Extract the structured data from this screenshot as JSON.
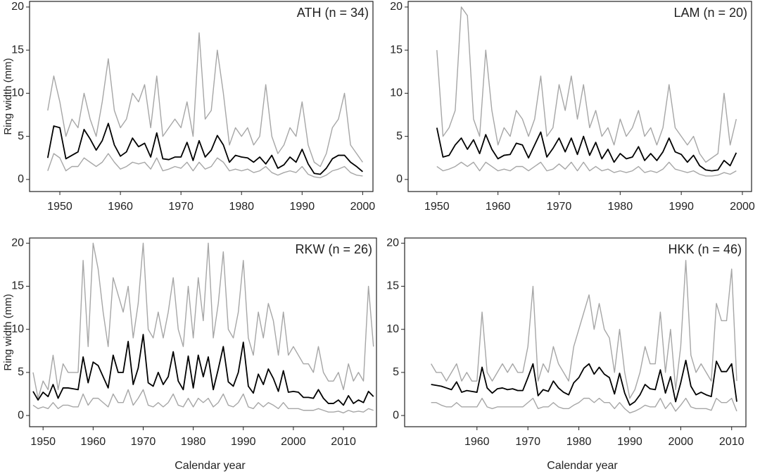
{
  "chart_data": [
    {
      "type": "line",
      "title": "ATH (n = 34)",
      "y_label": "Ring width (mm)",
      "x": [
        1948,
        1949,
        1950,
        1951,
        1952,
        1953,
        1954,
        1955,
        1956,
        1957,
        1958,
        1959,
        1960,
        1961,
        1962,
        1963,
        1964,
        1965,
        1966,
        1967,
        1968,
        1969,
        1970,
        1971,
        1972,
        1973,
        1974,
        1975,
        1976,
        1977,
        1978,
        1979,
        1980,
        1981,
        1982,
        1983,
        1984,
        1985,
        1986,
        1987,
        1988,
        1989,
        1990,
        1991,
        1992,
        1993,
        1994,
        1995,
        1996,
        1997,
        1998,
        1999,
        2000
      ],
      "series": [
        {
          "color": "#a6a6a6",
          "values": [
            8,
            12,
            9,
            5,
            7,
            6,
            10,
            7,
            5,
            9,
            14,
            8,
            6,
            7,
            10,
            9,
            11,
            6,
            12,
            5,
            6,
            7,
            6,
            9,
            5,
            17,
            7,
            8,
            15,
            10,
            4,
            6,
            5,
            6,
            4,
            5,
            11,
            5,
            3,
            4,
            6,
            5,
            9,
            4,
            2,
            1.5,
            3,
            6,
            7,
            10,
            4,
            3,
            2
          ]
        },
        {
          "color": "#a6a6a6",
          "values": [
            1,
            3,
            2.5,
            1,
            1.5,
            1.5,
            2.5,
            2,
            1.5,
            2,
            3,
            2,
            1.2,
            1.5,
            2,
            1.8,
            2,
            1.2,
            2.5,
            1,
            1.2,
            1.5,
            1.3,
            2,
            1,
            2,
            1.2,
            1.5,
            2.5,
            2,
            1,
            1.2,
            1,
            1.2,
            0.8,
            1,
            1.5,
            0.8,
            0.5,
            0.8,
            1,
            0.8,
            1.5,
            0.6,
            0.3,
            0.2,
            0.5,
            1,
            1.2,
            1.5,
            0.8,
            0.5,
            0.4
          ]
        },
        {
          "color": "#000000",
          "values": [
            2.5,
            6.2,
            6.0,
            2.4,
            2.8,
            3.2,
            5.8,
            4.7,
            3.4,
            4.5,
            6.5,
            4.0,
            2.7,
            3.2,
            4.8,
            3.8,
            4.2,
            2.6,
            5.4,
            2.4,
            2.3,
            2.6,
            2.6,
            4.3,
            2.2,
            4.5,
            2.6,
            3.4,
            5.1,
            4.0,
            2.0,
            2.8,
            2.6,
            2.5,
            2.0,
            2.6,
            1.8,
            2.8,
            1.3,
            1.7,
            2.6,
            2.0,
            3.5,
            1.8,
            0.7,
            0.6,
            1.3,
            2.4,
            2.8,
            2.8,
            2.0,
            1.5,
            0.9
          ]
        }
      ],
      "xlim": [
        1945,
        2001.7
      ],
      "ylim": [
        -1.4,
        20.65
      ],
      "xticks": [
        1950,
        1960,
        1970,
        1980,
        1990,
        2000
      ],
      "yticks": [
        0,
        5,
        10,
        15,
        20
      ]
    },
    {
      "type": "line",
      "title": "LAM (n = 20)",
      "x": [
        1950,
        1951,
        1952,
        1953,
        1954,
        1955,
        1956,
        1957,
        1958,
        1959,
        1960,
        1961,
        1962,
        1963,
        1964,
        1965,
        1966,
        1967,
        1968,
        1969,
        1970,
        1971,
        1972,
        1973,
        1974,
        1975,
        1976,
        1977,
        1978,
        1979,
        1980,
        1981,
        1982,
        1983,
        1984,
        1985,
        1986,
        1987,
        1988,
        1989,
        1990,
        1991,
        1992,
        1993,
        1994,
        1995,
        1996,
        1997,
        1998,
        1999
      ],
      "series": [
        {
          "color": "#a6a6a6",
          "values": [
            15,
            5,
            6,
            8,
            20,
            19,
            7,
            5,
            15,
            8,
            4,
            6,
            5,
            8,
            7,
            5,
            7,
            12,
            5,
            6,
            11,
            8,
            12,
            7,
            11,
            6,
            8,
            5,
            6,
            4,
            7,
            5,
            6,
            8,
            5,
            6,
            4,
            6,
            11,
            6,
            5,
            4,
            5,
            3,
            2,
            2.5,
            3,
            10,
            4,
            7
          ]
        },
        {
          "color": "#a6a6a6",
          "values": [
            1.5,
            1,
            1.2,
            1.5,
            2,
            1.5,
            2,
            1,
            2,
            1.5,
            1,
            1.2,
            1,
            1.5,
            1.5,
            1,
            1.5,
            2,
            1,
            1.2,
            1.8,
            1.2,
            2,
            1,
            2,
            1,
            1.5,
            1,
            1.2,
            0.8,
            1,
            0.8,
            1,
            1.5,
            0.8,
            1,
            0.8,
            1.2,
            2,
            1.2,
            1,
            0.8,
            1,
            0.6,
            0.4,
            0.4,
            0.5,
            0.8,
            0.6,
            1
          ]
        },
        {
          "color": "#000000",
          "values": [
            6.0,
            2.6,
            2.8,
            4.0,
            4.8,
            3.5,
            4.6,
            3.0,
            5.2,
            3.5,
            2.4,
            2.8,
            2.9,
            4.2,
            4.0,
            2.5,
            4.0,
            5.5,
            2.6,
            3.6,
            4.8,
            3.2,
            4.8,
            2.9,
            5.0,
            2.8,
            4.3,
            2.4,
            3.5,
            2.0,
            3.0,
            2.4,
            2.6,
            3.8,
            2.2,
            3.0,
            2.2,
            3.2,
            4.8,
            3.2,
            2.9,
            2.0,
            2.8,
            1.6,
            1.1,
            1.0,
            1.1,
            2.2,
            1.6,
            3.1
          ]
        }
      ],
      "xlim": [
        1945.3,
        2001.5
      ],
      "ylim": [
        -1.4,
        20.65
      ],
      "xticks": [
        1950,
        1960,
        1970,
        1980,
        1990,
        2000
      ],
      "yticks": [
        0,
        5,
        10,
        15,
        20
      ]
    },
    {
      "type": "line",
      "title": "RKW (n = 26)",
      "y_label": "Ring width (mm)",
      "x_label": "Calendar year",
      "x": [
        1948,
        1949,
        1950,
        1951,
        1952,
        1953,
        1954,
        1955,
        1956,
        1957,
        1958,
        1959,
        1960,
        1961,
        1962,
        1963,
        1964,
        1965,
        1966,
        1967,
        1968,
        1969,
        1970,
        1971,
        1972,
        1973,
        1974,
        1975,
        1976,
        1977,
        1978,
        1979,
        1980,
        1981,
        1982,
        1983,
        1984,
        1985,
        1986,
        1987,
        1988,
        1989,
        1990,
        1991,
        1992,
        1993,
        1994,
        1995,
        1996,
        1997,
        1998,
        1999,
        2000,
        2001,
        2002,
        2003,
        2004,
        2005,
        2006,
        2007,
        2008,
        2009,
        2010,
        2011,
        2012,
        2013,
        2014,
        2015,
        2016
      ],
      "series": [
        {
          "color": "#a6a6a6",
          "values": [
            5,
            2,
            4,
            3,
            7,
            3,
            6,
            5,
            5,
            5,
            18,
            8,
            20,
            17,
            12,
            8,
            16,
            14,
            12,
            15,
            9,
            13,
            20,
            10,
            9,
            12,
            9,
            12,
            16,
            10,
            8,
            15,
            9,
            16,
            11,
            20,
            9,
            13,
            19,
            10,
            9,
            12,
            18,
            9,
            7,
            12,
            9,
            13,
            11,
            7,
            12,
            7,
            8,
            7,
            6,
            6,
            5,
            8,
            5,
            4,
            4,
            5,
            3,
            6,
            4,
            5,
            4,
            15,
            8
          ]
        },
        {
          "color": "#a6a6a6",
          "values": [
            1.2,
            0.8,
            1,
            0.8,
            1.5,
            0.8,
            1.2,
            1.2,
            1,
            1,
            2.5,
            1.2,
            2,
            2,
            1.5,
            1,
            2.5,
            1.5,
            1.5,
            3,
            1.2,
            2,
            3,
            1.2,
            1,
            1.5,
            1,
            1.5,
            2.5,
            1.2,
            1,
            2,
            1,
            2,
            1.5,
            2,
            1,
            1.5,
            2.5,
            1.2,
            1,
            1.5,
            2.5,
            1,
            0.8,
            1.5,
            1,
            1.5,
            1.2,
            0.8,
            1.5,
            0.8,
            0.8,
            0.8,
            0.6,
            0.6,
            0.6,
            0.8,
            0.6,
            0.4,
            0.4,
            0.5,
            0.3,
            0.6,
            0.4,
            0.5,
            0.4,
            0.8,
            0.6
          ]
        },
        {
          "color": "#000000",
          "values": [
            2.8,
            1.8,
            2.7,
            2.2,
            3.6,
            2.0,
            3.2,
            3.2,
            3.1,
            3.0,
            6.8,
            3.8,
            6.2,
            5.8,
            4.5,
            3.2,
            7.0,
            5.0,
            5.0,
            8.6,
            3.6,
            5.5,
            9.4,
            3.8,
            3.4,
            5.0,
            3.6,
            4.5,
            7.4,
            4.0,
            3.0,
            6.9,
            3.2,
            7.0,
            4.5,
            6.8,
            3.0,
            5.4,
            8.0,
            3.9,
            3.4,
            5.0,
            8.5,
            3.4,
            2.6,
            4.8,
            3.6,
            5.4,
            4.3,
            2.8,
            5.2,
            2.7,
            2.8,
            2.7,
            2.1,
            2.1,
            2.0,
            3.0,
            2.0,
            1.4,
            1.4,
            1.8,
            1.2,
            2.3,
            1.4,
            1.8,
            1.5,
            2.8,
            2.2
          ]
        }
      ],
      "xlim": [
        1947.3,
        2016.6
      ],
      "ylim": [
        -1.3,
        20.6
      ],
      "xticks": [
        1950,
        1960,
        1970,
        1980,
        1990,
        2000,
        2010
      ],
      "yticks": [
        0,
        5,
        10,
        15,
        20
      ]
    },
    {
      "type": "line",
      "title": "HKK (n = 46)",
      "x_label": "Calendar year",
      "x": [
        1951,
        1952,
        1953,
        1954,
        1955,
        1956,
        1957,
        1958,
        1959,
        1960,
        1961,
        1962,
        1963,
        1964,
        1965,
        1966,
        1967,
        1968,
        1969,
        1970,
        1971,
        1972,
        1973,
        1974,
        1975,
        1976,
        1977,
        1978,
        1979,
        1980,
        1981,
        1982,
        1983,
        1984,
        1985,
        1986,
        1987,
        1988,
        1989,
        1990,
        1991,
        1992,
        1993,
        1994,
        1995,
        1996,
        1997,
        1998,
        1999,
        2000,
        2001,
        2002,
        2003,
        2004,
        2005,
        2006,
        2007,
        2008,
        2009,
        2010,
        2011
      ],
      "series": [
        {
          "color": "#a6a6a6",
          "values": [
            6,
            5,
            5,
            4,
            5,
            6,
            4,
            5,
            4,
            4,
            12,
            5,
            4,
            5,
            6,
            5,
            6,
            5,
            5,
            8,
            15,
            4,
            6,
            5,
            8,
            6,
            5,
            4,
            8,
            10,
            12,
            14,
            10,
            13,
            10,
            9,
            5,
            10,
            5,
            2,
            3,
            5,
            8,
            6,
            6,
            12,
            5,
            10,
            3,
            8,
            18,
            7,
            5,
            6,
            5,
            4,
            13,
            11,
            11,
            17,
            4
          ]
        },
        {
          "color": "#a6a6a6",
          "values": [
            1.5,
            1.5,
            1.2,
            1,
            1,
            1.5,
            1,
            1,
            1,
            1,
            2,
            1,
            0.8,
            1,
            1,
            1,
            1,
            1,
            1,
            1.5,
            2,
            0.8,
            1,
            1,
            1.5,
            1,
            0.8,
            0.8,
            1.2,
            1.5,
            2,
            2,
            1.5,
            2,
            1.5,
            1.5,
            0.8,
            1.5,
            0.8,
            0.3,
            0.5,
            0.8,
            1.2,
            1,
            1,
            2,
            0.8,
            1.5,
            0.5,
            1.2,
            2,
            1,
            0.8,
            0.8,
            0.8,
            0.6,
            2,
            1.5,
            1.5,
            2,
            0.5
          ]
        },
        {
          "color": "#000000",
          "values": [
            3.6,
            3.5,
            3.4,
            3.2,
            3.0,
            3.9,
            2.7,
            2.9,
            2.8,
            2.7,
            5.6,
            3.2,
            2.6,
            3.1,
            3.2,
            3.0,
            3.1,
            2.9,
            2.9,
            4.4,
            6.0,
            2.3,
            3.0,
            2.8,
            4.0,
            3.2,
            2.7,
            2.4,
            3.8,
            4.4,
            5.5,
            6.0,
            4.8,
            5.6,
            4.8,
            4.4,
            2.5,
            4.9,
            2.6,
            1.2,
            1.6,
            2.4,
            3.6,
            3.1,
            3.0,
            5.3,
            2.6,
            4.5,
            1.6,
            3.8,
            6.4,
            3.4,
            2.4,
            2.7,
            2.4,
            2.2,
            6.3,
            5.1,
            5.1,
            6.0,
            1.6
          ]
        }
      ],
      "xlim": [
        1945.8,
        2012.8
      ],
      "ylim": [
        -1.3,
        20.6
      ],
      "xticks": [
        1960,
        1970,
        1980,
        1990,
        2000,
        2010
      ],
      "yticks": [
        0,
        5,
        10,
        15,
        20
      ]
    }
  ]
}
